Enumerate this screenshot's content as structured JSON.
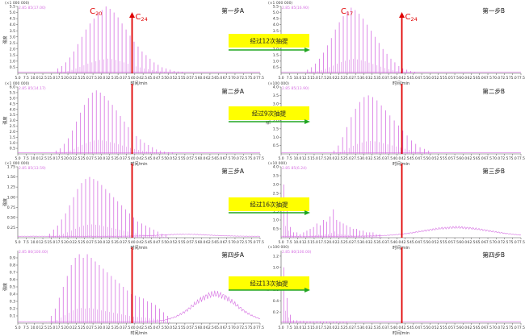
{
  "chart_data": [
    {
      "type": "line",
      "title": "第一步A",
      "mult": "(×1 000 000)",
      "peak_info": "2.85 85(17.00)",
      "xlabel": "时间/min",
      "ylabel": "强度",
      "yticks": [
        "5.5",
        "5.0",
        "4.5",
        "4.0",
        "3.5",
        "3.0",
        "2.5",
        "2.0",
        "1.5",
        "1.0",
        "0.5"
      ],
      "ylim": [
        0,
        5.5
      ],
      "xlim": [
        5,
        77.5
      ],
      "xticks": [
        "5.0",
        "7.5",
        "10.0",
        "12.5",
        "15.0",
        "17.5",
        "20.0",
        "22.5",
        "25.0",
        "27.5",
        "30.0",
        "32.5",
        "35.0",
        "37.5",
        "40.0",
        "42.5",
        "45.0",
        "47.5",
        "50.0",
        "52.5",
        "55.0",
        "57.5",
        "60.0",
        "62.5",
        "65.0",
        "67.5",
        "70.0",
        "72.5",
        "75.0",
        "77.5"
      ],
      "annotations": {
        "c_left": {
          "base": "C",
          "sub": "20",
          "x": 28.0
        },
        "c_right": {
          "base": "C",
          "sub": "24",
          "x": 39.2
        },
        "marker_x": 39.2
      },
      "peaks": {
        "start": 17.0,
        "step": 1.2,
        "heights": [
          0.4,
          0.6,
          0.9,
          1.3,
          1.8,
          2.4,
          3.0,
          3.6,
          4.1,
          4.5,
          5.0,
          5.2,
          5.5,
          5.3,
          5.0,
          4.6,
          4.1,
          3.6,
          3.1,
          2.6,
          2.2,
          1.8,
          1.5,
          1.2,
          0.9,
          0.7,
          0.5,
          0.4,
          0.3,
          0.2,
          0.15,
          0.1
        ]
      },
      "hump": {
        "center": 55,
        "width": 10,
        "height": 0
      }
    },
    {
      "type": "line",
      "title": "第一步B",
      "mult": "(×1 000 000)",
      "peak_info": "2.85 85(16.90)",
      "xlabel": "时间/min",
      "ylabel": "强度",
      "yticks": [
        "5.5",
        "5.0",
        "4.5",
        "4.0",
        "3.5",
        "3.0",
        "2.5",
        "2.0",
        "1.5",
        "1.0",
        "0.5"
      ],
      "ylim": [
        0,
        5.5
      ],
      "xlim": [
        5,
        77.5
      ],
      "xticks": [
        "5.0",
        "7.5",
        "10.0",
        "12.5",
        "15.0",
        "17.5",
        "20.0",
        "22.5",
        "25.0",
        "27.5",
        "30.0",
        "32.5",
        "35.0",
        "37.5",
        "40.0",
        "42.5",
        "45.0",
        "47.5",
        "50.0",
        "52.5",
        "55.0",
        "57.5",
        "60.0",
        "62.5",
        "65.0",
        "67.5",
        "70.0",
        "72.5",
        "75.0",
        "77.5"
      ],
      "annotations": {
        "c_left": {
          "base": "C",
          "sub": "17",
          "x": 24.5
        },
        "c_right": {
          "base": "C",
          "sub": "24",
          "x": 41.5
        },
        "marker_x": 41.5
      },
      "peaks": {
        "start": 13.0,
        "step": 1.2,
        "heights": [
          0.3,
          0.5,
          0.8,
          1.2,
          1.7,
          2.3,
          2.9,
          3.6,
          4.2,
          4.7,
          5.1,
          5.4,
          5.2,
          4.9,
          4.5,
          4.0,
          3.5,
          3.0,
          2.5,
          2.0,
          1.6,
          1.2,
          0.9,
          0.6,
          0.4,
          0.3,
          0.2,
          0.1
        ]
      },
      "hump": {
        "center": 55,
        "width": 10,
        "height": 0
      }
    },
    {
      "type": "line",
      "title": "第二步A",
      "mult": "(×1 000 000)",
      "peak_info": "2.85 85(14.17)",
      "xlabel": "时间/min",
      "ylabel": "强度",
      "yticks": [
        "6.0",
        "5.5",
        "5.0",
        "4.5",
        "4.0",
        "3.5",
        "3.0",
        "2.5",
        "2.0",
        "1.5",
        "1.0",
        "0.5"
      ],
      "ylim": [
        0,
        6.0
      ],
      "xlim": [
        5,
        77.5
      ],
      "xticks": [
        "5.0",
        "7.5",
        "10.0",
        "12.5",
        "15.0",
        "17.5",
        "20.0",
        "22.5",
        "25.0",
        "27.5",
        "30.0",
        "32.5",
        "35.0",
        "37.5",
        "40.0",
        "42.5",
        "45.0",
        "47.5",
        "50.0",
        "52.5",
        "55.0",
        "57.5",
        "60.0",
        "62.5",
        "65.0",
        "67.5",
        "70.0",
        "72.5",
        "75.0",
        "77.5"
      ],
      "annotations": {
        "marker_x": 39.2
      },
      "peaks": {
        "start": 16.5,
        "step": 1.2,
        "heights": [
          0.3,
          0.5,
          0.9,
          1.4,
          2.1,
          2.9,
          3.7,
          4.4,
          5.0,
          5.5,
          5.7,
          5.5,
          5.2,
          4.8,
          4.4,
          3.9,
          3.4,
          2.9,
          2.4,
          2.0,
          1.6,
          1.3,
          1.0,
          0.8,
          0.6,
          0.4,
          0.3,
          0.2,
          0.15,
          0.1
        ]
      },
      "hump": {
        "center": 55,
        "width": 10,
        "height": 0
      }
    },
    {
      "type": "line",
      "title": "第二步B",
      "mult": "(×100 000)",
      "peak_info": "2.85 85(13.90)",
      "xlabel": "时间/min",
      "ylabel": "强度",
      "yticks": [
        "4.0",
        "3.5",
        "3.0",
        "2.5",
        "2.0",
        "1.5",
        "1.0",
        "0.5"
      ],
      "ylim": [
        0,
        4.0
      ],
      "xlim": [
        5,
        77.5
      ],
      "xticks": [
        "5.0",
        "7.5",
        "10.0",
        "12.5",
        "15.0",
        "17.5",
        "20.0",
        "22.5",
        "25.0",
        "27.5",
        "30.0",
        "32.5",
        "35.0",
        "37.5",
        "40.0",
        "42.5",
        "45.0",
        "47.5",
        "50.0",
        "52.5",
        "55.0",
        "57.5",
        "60.0",
        "62.5",
        "65.0",
        "67.5",
        "70.0",
        "72.5",
        "75.0",
        "77.5"
      ],
      "annotations": {
        "marker_x": 41.5
      },
      "peaks": {
        "start": 21.0,
        "step": 1.3,
        "heights": [
          0.2,
          0.5,
          1.0,
          1.6,
          2.2,
          2.7,
          3.1,
          3.4,
          3.5,
          3.4,
          3.2,
          2.9,
          2.6,
          2.3,
          2.0,
          1.7,
          1.4,
          1.1,
          0.8,
          0.6,
          0.4,
          0.3,
          0.2
        ]
      },
      "hump": {
        "center": 55,
        "width": 10,
        "height": 0
      }
    },
    {
      "type": "line",
      "title": "第三步A",
      "mult": "(×1 000 000)",
      "peak_info": "2.85 85(13.59)",
      "xlabel": "时间/min",
      "ylabel": "强度",
      "yticks": [
        "1.75",
        "1.50",
        "1.25",
        "1.00",
        "0.75",
        "0.50",
        "0.25"
      ],
      "ylim": [
        0,
        1.75
      ],
      "xlim": [
        5,
        77.5
      ],
      "xticks": [
        "5.0",
        "7.5",
        "10.0",
        "12.5",
        "15.0",
        "17.5",
        "20.0",
        "22.5",
        "25.0",
        "27.5",
        "30.0",
        "32.5",
        "35.0",
        "37.5",
        "40.0",
        "42.5",
        "45.0",
        "47.5",
        "50.0",
        "52.5",
        "55.0",
        "57.5",
        "60.0",
        "62.5",
        "65.0",
        "67.5",
        "70.0",
        "72.5",
        "75.0",
        "77.5"
      ],
      "annotations": {
        "marker_x": 39.2
      },
      "peaks": {
        "start": 14.5,
        "step": 1.2,
        "heights": [
          0.1,
          0.2,
          0.3,
          0.45,
          0.6,
          0.8,
          1.0,
          1.2,
          1.35,
          1.45,
          1.5,
          1.45,
          1.4,
          1.3,
          1.2,
          1.1,
          1.0,
          0.9,
          0.8,
          0.7,
          0.6,
          0.5,
          0.4,
          0.35,
          0.3,
          0.25,
          0.2,
          0.15,
          0.1,
          0.08
        ]
      },
      "hump": {
        "center": 55,
        "width": 10,
        "height": 0.05
      }
    },
    {
      "type": "line",
      "title": "第三步B",
      "mult": "(×10 000)",
      "peak_info": "2.85 85(6.24)",
      "xlabel": "时间/min",
      "ylabel": "强度",
      "yticks": [
        "4.0",
        "3.5",
        "3.0",
        "2.5",
        "2.0",
        "1.5",
        "1.0",
        "0.5"
      ],
      "ylim": [
        0,
        4.0
      ],
      "xlim": [
        5,
        77.5
      ],
      "xticks": [
        "5.0",
        "7.5",
        "10.0",
        "12.5",
        "15.0",
        "17.5",
        "20.0",
        "22.5",
        "25.0",
        "27.5",
        "30.0",
        "32.5",
        "35.0",
        "37.5",
        "40.0",
        "42.5",
        "45.0",
        "47.5",
        "50.0",
        "52.5",
        "55.0",
        "57.5",
        "60.0",
        "62.5",
        "65.0",
        "67.5",
        "70.0",
        "72.5",
        "75.0",
        "77.5"
      ],
      "annotations": {
        "marker_x": 41.5
      },
      "peaks": {
        "start": 5.8,
        "step": 1.0,
        "heights": [
          3.0,
          1.8,
          0.6,
          0.3,
          0.3,
          0.2,
          0.3,
          0.4,
          0.5,
          0.6,
          0.8,
          0.7,
          1.0,
          0.9,
          1.2,
          1.6,
          1.0,
          0.9,
          0.8,
          0.7,
          0.6,
          0.5,
          0.5,
          0.4,
          0.4,
          0.3,
          0.3,
          0.3,
          0.2,
          0.2
        ]
      },
      "hump": {
        "center": 58,
        "width": 14,
        "height": 0.5
      }
    },
    {
      "type": "line",
      "title": "第四步A",
      "mult": "",
      "peak_info": "2.85 80(100.00)",
      "xlabel": "时间/min",
      "ylabel": "强度",
      "yticks": [
        "0.9",
        "0.8",
        "0.7",
        "0.6",
        "0.5",
        "0.4",
        "0.3",
        "0.2",
        "0.1"
      ],
      "ylim": [
        0,
        1.0
      ],
      "xlim": [
        5,
        77.5
      ],
      "xticks": [
        "5.0",
        "7.5",
        "10.0",
        "12.5",
        "15.0",
        "17.5",
        "20.0",
        "22.5",
        "25.0",
        "27.5",
        "30.0",
        "32.5",
        "35.0",
        "37.5",
        "40.0",
        "42.5",
        "45.0",
        "47.5",
        "50.0",
        "52.5",
        "55.0",
        "57.5",
        "60.0",
        "62.5",
        "65.0",
        "67.5",
        "70.0",
        "72.5",
        "75.0",
        "77.5"
      ],
      "annotations": {
        "marker_x": 39.2
      },
      "peaks": {
        "start": 15.0,
        "step": 1.2,
        "heights": [
          0.1,
          0.2,
          0.35,
          0.5,
          0.65,
          0.8,
          0.9,
          0.95,
          0.9,
          0.95,
          0.9,
          0.85,
          0.8,
          0.75,
          0.7,
          0.65,
          0.6,
          0.55,
          0.5,
          0.45,
          0.4,
          0.38,
          0.36,
          0.34,
          0.3,
          0.28,
          0.25,
          0.2,
          0.15,
          0.1
        ]
      },
      "hump": {
        "center": 64,
        "width": 9,
        "height": 0.38
      }
    },
    {
      "type": "line",
      "title": "第四步B",
      "mult": "(×100 000)",
      "peak_info": "2.85 80(100.00)",
      "xlabel": "时间/min",
      "ylabel": "强度",
      "yticks": [
        "1.2",
        "1.0",
        "0.8",
        "0.6",
        "0.4",
        "0.2"
      ],
      "ylim": [
        0,
        1.3
      ],
      "xlim": [
        5,
        77.5
      ],
      "xticks": [
        "5.0",
        "7.5",
        "10.0",
        "12.5",
        "15.0",
        "17.5",
        "20.0",
        "22.5",
        "25.0",
        "27.5",
        "30.0",
        "32.5",
        "35.0",
        "37.5",
        "40.0",
        "42.5",
        "45.0",
        "47.5",
        "50.0",
        "52.5",
        "55.0",
        "57.5",
        "60.0",
        "62.5",
        "65.0",
        "67.5",
        "70.0",
        "72.5",
        "75.0",
        "77.5"
      ],
      "annotations": {
        "marker_x": 41.5
      },
      "peaks": {
        "start": 5.8,
        "step": 1.0,
        "heights": [
          1.0,
          0.45,
          0.15,
          0.05,
          0.05,
          0.04,
          0.04,
          0.03,
          0.03,
          0.03,
          0.03,
          0.03,
          0.02,
          0.02,
          0.02,
          0.02,
          0.02,
          0.02,
          0.02,
          0.02
        ]
      },
      "hump": {
        "center": 55,
        "width": 10,
        "height": 0
      }
    }
  ],
  "arrows": [
    {
      "label": "经过12次抽提"
    },
    {
      "label": "经过9次抽提"
    },
    {
      "label": "经过16次抽提"
    },
    {
      "label": "经过13次抽提"
    }
  ],
  "colors": {
    "trace": "#d670e2",
    "marker": "#e00000",
    "label_box": "#ffff00",
    "arrow": "#21a621",
    "axis": "#555555",
    "mult_text": "#444444"
  }
}
